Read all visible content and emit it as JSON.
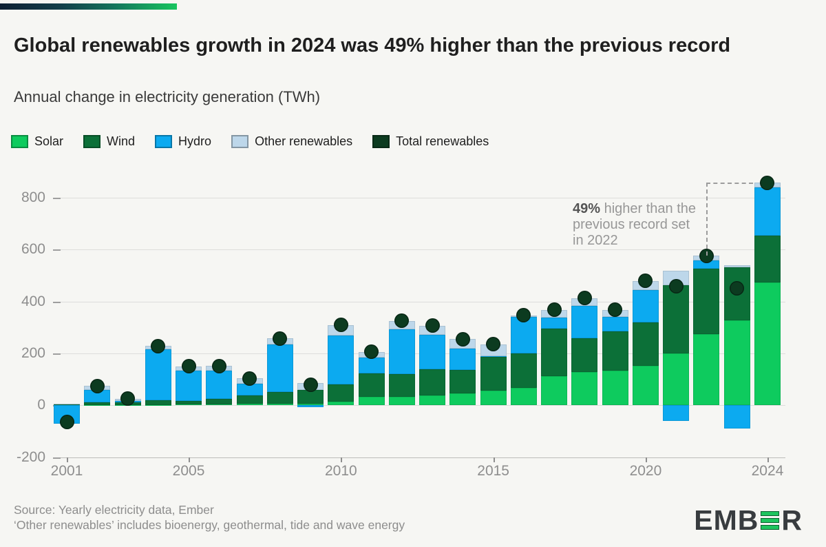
{
  "header": {
    "title": "Global renewables growth in 2024 was 49% higher than the previous record",
    "subtitle": "Annual change in electricity generation (TWh)"
  },
  "chart_data": {
    "type": "bar",
    "stacked": true,
    "title": "Global renewables growth in 2024 was 49% higher than the previous record",
    "subtitle": "Annual change in electricity generation (TWh)",
    "unit": "TWh",
    "x": [
      2001,
      2002,
      2003,
      2004,
      2005,
      2006,
      2007,
      2008,
      2009,
      2010,
      2011,
      2012,
      2013,
      2014,
      2015,
      2016,
      2017,
      2018,
      2019,
      2020,
      2021,
      2022,
      2023,
      2024
    ],
    "series": [
      {
        "name": "Solar",
        "color": "#0ecb5e",
        "values": [
          0,
          2,
          2,
          2,
          3,
          4,
          5,
          6,
          6,
          13,
          32,
          33,
          38,
          45,
          56,
          67,
          113,
          128,
          133,
          152,
          200,
          275,
          328,
          474
        ]
      },
      {
        "name": "Wind",
        "color": "#0c7038",
        "values": [
          6,
          10,
          10,
          18,
          15,
          22,
          33,
          44,
          52,
          67,
          92,
          87,
          100,
          90,
          131,
          134,
          183,
          130,
          151,
          168,
          264,
          251,
          204,
          181
        ]
      },
      {
        "name": "Hydro",
        "color": "#0caaf0",
        "values": [
          -70,
          48,
          4,
          195,
          115,
          108,
          44,
          185,
          -8,
          188,
          60,
          173,
          133,
          83,
          2,
          139,
          41,
          124,
          56,
          123,
          -60,
          33,
          -90,
          185
        ]
      },
      {
        "name": "Other renewables",
        "color": "#bdd7ea",
        "values": [
          1,
          15,
          10,
          13,
          17,
          17,
          22,
          23,
          28,
          41,
          22,
          33,
          36,
          37,
          46,
          7,
          31,
          31,
          28,
          37,
          55,
          18,
          8,
          18
        ]
      }
    ],
    "dot_series": {
      "name": "Total renewables",
      "color": "#0c3b20",
      "values": [
        -63,
        75,
        26,
        228,
        150,
        151,
        104,
        258,
        78,
        309,
        206,
        326,
        307,
        255,
        235,
        347,
        368,
        413,
        368,
        480,
        459,
        577,
        450,
        858
      ]
    },
    "yticks": [
      -200,
      0,
      200,
      400,
      600,
      800
    ],
    "xticks": [
      2001,
      2005,
      2010,
      2015,
      2020,
      2024
    ],
    "ylim": [
      -200,
      870
    ],
    "grid": true,
    "legend_position": "top",
    "annotation": {
      "bold": "49%",
      "line1_rest": " higher than the",
      "line2": "previous record set",
      "line3": "in 2022",
      "from_year": 2022,
      "from_value": 577,
      "to_year": 2024,
      "to_value": 858
    }
  },
  "footer": {
    "source_line1": "Source: Yearly electricity data, Ember",
    "source_line2": "‘Other renewables’ includes bioenergy, geothermal, tide and wave energy"
  },
  "logo": {
    "name": "EMBER",
    "prefix": "EMB",
    "suffix": "R"
  }
}
